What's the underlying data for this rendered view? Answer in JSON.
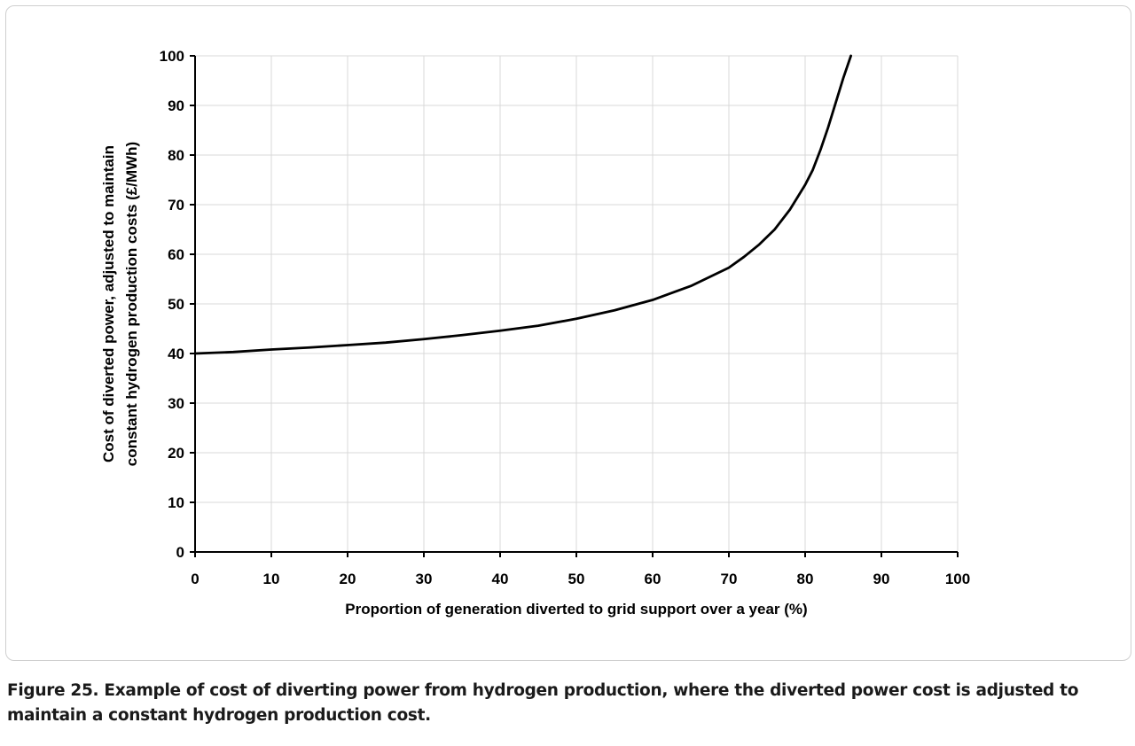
{
  "chart_data": {
    "type": "line",
    "xlabel": "Proportion of generation diverted to grid support over a year (%)",
    "ylabel": [
      "Cost of diverted power, adjusted to maintain",
      "constant hydrogen production costs (£/MWh)"
    ],
    "xlim": [
      0,
      100
    ],
    "ylim": [
      0,
      100
    ],
    "xticks": [
      "0",
      "10",
      "20",
      "30",
      "40",
      "50",
      "60",
      "70",
      "80",
      "90",
      "100"
    ],
    "yticks": [
      "0",
      "10",
      "20",
      "30",
      "40",
      "50",
      "60",
      "70",
      "80",
      "90",
      "100"
    ],
    "grid": true,
    "legend": "none",
    "series": [
      {
        "color": "#000000",
        "x": [
          0,
          5,
          10,
          15,
          20,
          25,
          30,
          35,
          40,
          45,
          50,
          55,
          60,
          65,
          70,
          72,
          74,
          76,
          78,
          80,
          81,
          82,
          83,
          84,
          85,
          86
        ],
        "y": [
          40,
          40.3,
          40.8,
          41.2,
          41.7,
          42.2,
          42.9,
          43.7,
          44.6,
          45.6,
          47,
          48.7,
          50.8,
          53.6,
          57.3,
          59.5,
          62,
          65,
          69,
          74,
          77,
          81,
          85.5,
          90.5,
          95.5,
          100
        ]
      }
    ]
  },
  "caption": {
    "line1": "Figure 25. Example of cost of diverting power from hydrogen production, where the diverted power cost is adjusted to",
    "line2": "maintain a constant hydrogen production cost."
  }
}
